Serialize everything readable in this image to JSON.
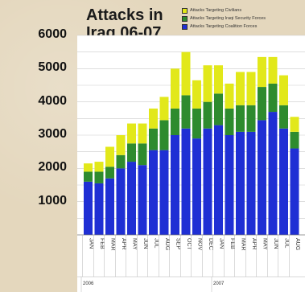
{
  "chart_data": {
    "type": "bar",
    "stacked": true,
    "title": "Attacks in Iraq 06-07",
    "title_lines": [
      "Attacks in",
      "Iraq 06-07"
    ],
    "categories": [
      "JAN",
      "FEB",
      "MAR",
      "APR",
      "MAY",
      "JUN",
      "JUL",
      "AUG",
      "SEP",
      "OCT",
      "NOV",
      "DEC",
      "JAN",
      "FEB",
      "MAR",
      "APR",
      "MAY",
      "JUN",
      "JUL",
      "AUG"
    ],
    "year_labels": [
      {
        "label": "2006",
        "index": 0
      },
      {
        "label": "2007",
        "index": 12
      }
    ],
    "series": [
      {
        "name": "Attacks Targeting Coalition Forces",
        "color": "#1f2fd4",
        "values": [
          1600,
          1550,
          1700,
          2000,
          2200,
          2100,
          2550,
          2550,
          3000,
          3200,
          2900,
          3200,
          3300,
          3000,
          3100,
          3100,
          3450,
          3700,
          3200,
          2600
        ]
      },
      {
        "name": "Attacks Targeting Iraqi Security Forces",
        "color": "#2e8b2e",
        "values": [
          300,
          350,
          350,
          400,
          550,
          650,
          650,
          900,
          800,
          1000,
          900,
          800,
          950,
          800,
          800,
          800,
          1000,
          850,
          700,
          500
        ]
      },
      {
        "name": "Attacks Targeting Civilians",
        "color": "#e2e81a",
        "values": [
          250,
          300,
          600,
          600,
          600,
          600,
          600,
          700,
          1200,
          1300,
          850,
          1100,
          850,
          750,
          1000,
          1000,
          900,
          800,
          900,
          450
        ]
      }
    ],
    "legend_order": [
      2,
      1,
      0
    ],
    "ylim": [
      0,
      6000
    ],
    "yticks": [
      "1000",
      "2000",
      "3000",
      "4000",
      "5000",
      "6000"
    ],
    "grid": true,
    "legend_position": "top-right"
  }
}
